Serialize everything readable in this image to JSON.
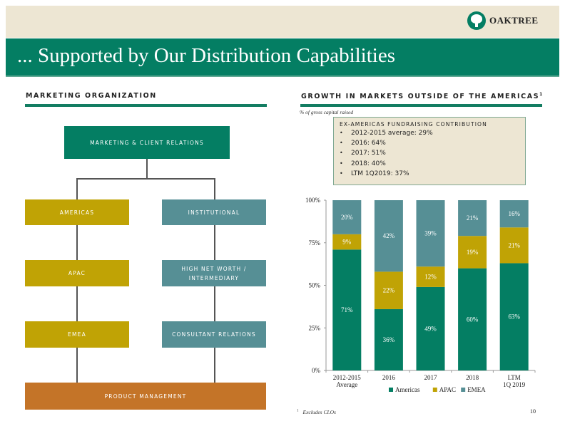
{
  "header": {
    "title": "... Supported by Our Distribution Capabilities",
    "logo_text": "OAKTREE",
    "logo_icon": "oak-tree-icon"
  },
  "colors": {
    "brand_green": "#047e63",
    "gold": "#c0a305",
    "teal": "#568f95",
    "orange": "#c47428",
    "beige": "#ede6d3"
  },
  "left": {
    "section_title": "Marketing Organization",
    "org": {
      "root": "Marketing & Client Relations",
      "left_column": [
        "Americas",
        "APAC",
        "EMEA"
      ],
      "right_column": [
        "Institutional",
        "High Net Worth / Intermediary",
        "Consultant Relations"
      ],
      "bottom": "Product Management"
    }
  },
  "right": {
    "section_title": "Growth in Markets Outside of the Americas",
    "section_title_sup": "1",
    "subtitle": "% of gross capital raised",
    "callout": {
      "title": "Ex-Americas Fundraising Contribution",
      "items": [
        "2012-2015 average: 29%",
        "2016: 64%",
        "2017: 51%",
        "2018: 40%",
        "LTM 1Q2019: 37%"
      ]
    },
    "footnote_marker": "1",
    "footnote": "Excludes CLOs"
  },
  "page_number": "10",
  "chart_data": {
    "type": "bar",
    "stacked": true,
    "title": "",
    "xlabel": "",
    "ylabel": "",
    "categories": [
      "2012-2015 Average",
      "2016",
      "2017",
      "2018",
      "LTM 1Q 2019"
    ],
    "category_lines": [
      [
        "2012-2015",
        "Average"
      ],
      [
        "2016"
      ],
      [
        "2017"
      ],
      [
        "2018"
      ],
      [
        "LTM",
        "1Q 2019"
      ]
    ],
    "series": [
      {
        "name": "Americas",
        "color": "#047e63",
        "values": [
          71,
          36,
          49,
          60,
          63
        ]
      },
      {
        "name": "APAC",
        "color": "#c0a305",
        "values": [
          9,
          22,
          12,
          19,
          21
        ]
      },
      {
        "name": "EMEA",
        "color": "#568f95",
        "values": [
          20,
          42,
          39,
          21,
          16
        ]
      }
    ],
    "ylim": [
      0,
      100
    ],
    "yticks": [
      "0%",
      "25%",
      "50%",
      "75%",
      "100%"
    ],
    "ytick_values": [
      0,
      25,
      50,
      75,
      100
    ],
    "grid": false,
    "legend_position": "bottom"
  }
}
